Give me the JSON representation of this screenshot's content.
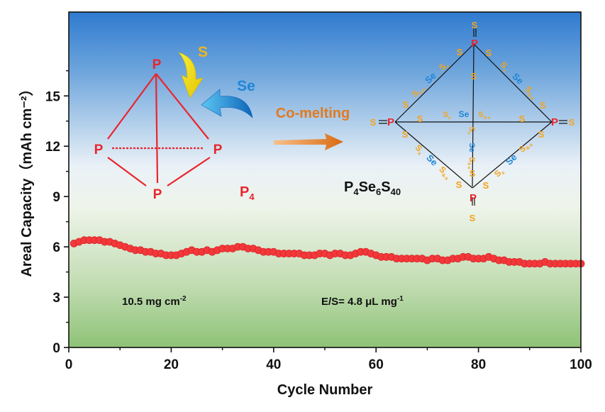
{
  "chart_data": {
    "type": "scatter",
    "xlabel": "Cycle Number",
    "ylabel": "Areal Capacity（mAh cm⁻²）",
    "xlim": [
      0,
      100
    ],
    "ylim": [
      0,
      20
    ],
    "xticks": [
      "0",
      "20",
      "40",
      "60",
      "80",
      "100"
    ],
    "yticks": [
      "0",
      "3",
      "6",
      "9",
      "12",
      "15"
    ],
    "series": [
      {
        "color": "#f2383a",
        "x": [
          1,
          2,
          3,
          4,
          5,
          6,
          7,
          8,
          9,
          10,
          11,
          12,
          13,
          14,
          15,
          16,
          17,
          18,
          19,
          20,
          21,
          22,
          23,
          24,
          25,
          26,
          27,
          28,
          29,
          30,
          31,
          32,
          33,
          34,
          35,
          36,
          37,
          38,
          39,
          40,
          41,
          42,
          43,
          44,
          45,
          46,
          47,
          48,
          49,
          50,
          51,
          52,
          53,
          54,
          55,
          56,
          57,
          58,
          59,
          60,
          61,
          62,
          63,
          64,
          65,
          66,
          67,
          68,
          69,
          70,
          71,
          72,
          73,
          74,
          75,
          76,
          77,
          78,
          79,
          80,
          81,
          82,
          83,
          84,
          85,
          86,
          87,
          88,
          89,
          90,
          91,
          92,
          93,
          94,
          95,
          96,
          97,
          98,
          99,
          100
        ],
        "y": [
          6.2,
          6.3,
          6.4,
          6.4,
          6.4,
          6.4,
          6.3,
          6.3,
          6.2,
          6.1,
          6.0,
          5.9,
          5.8,
          5.8,
          5.7,
          5.7,
          5.6,
          5.6,
          5.5,
          5.5,
          5.5,
          5.6,
          5.7,
          5.8,
          5.7,
          5.7,
          5.8,
          5.7,
          5.8,
          5.9,
          5.9,
          5.9,
          6.0,
          6.0,
          5.9,
          5.9,
          5.8,
          5.7,
          5.7,
          5.7,
          5.6,
          5.6,
          5.6,
          5.6,
          5.6,
          5.5,
          5.5,
          5.5,
          5.6,
          5.6,
          5.5,
          5.6,
          5.6,
          5.5,
          5.5,
          5.6,
          5.7,
          5.7,
          5.6,
          5.5,
          5.4,
          5.4,
          5.4,
          5.3,
          5.3,
          5.3,
          5.3,
          5.3,
          5.3,
          5.2,
          5.3,
          5.3,
          5.2,
          5.2,
          5.3,
          5.3,
          5.4,
          5.4,
          5.3,
          5.3,
          5.3,
          5.4,
          5.3,
          5.2,
          5.2,
          5.1,
          5.1,
          5.1,
          5.0,
          5.0,
          5.0,
          5.0,
          5.1,
          5.0,
          5.0,
          5.0,
          5.0,
          5.0,
          5.0,
          5.0
        ]
      }
    ],
    "annotations": {
      "loading": "10.5 mg cm",
      "loading_sup": "-2",
      "es_ratio": "E/S= 4.8 μL mg",
      "es_sup": "-1",
      "process": "Co-melting",
      "p4_label": "P4",
      "product_label": "P4Se6S40",
      "sulfur": "S",
      "selenium": "Se",
      "phosphorus": "P"
    },
    "colors": {
      "points": "#f2383a",
      "bg_top": "#2f7bd0",
      "bg_mid": "#f4f8fb",
      "bg_bottom": "#8ec377",
      "arrow": "#e37a1f",
      "p_atom": "#e8262d",
      "s_atom": "#f3a31e",
      "se_atom": "#1f86d6"
    }
  }
}
